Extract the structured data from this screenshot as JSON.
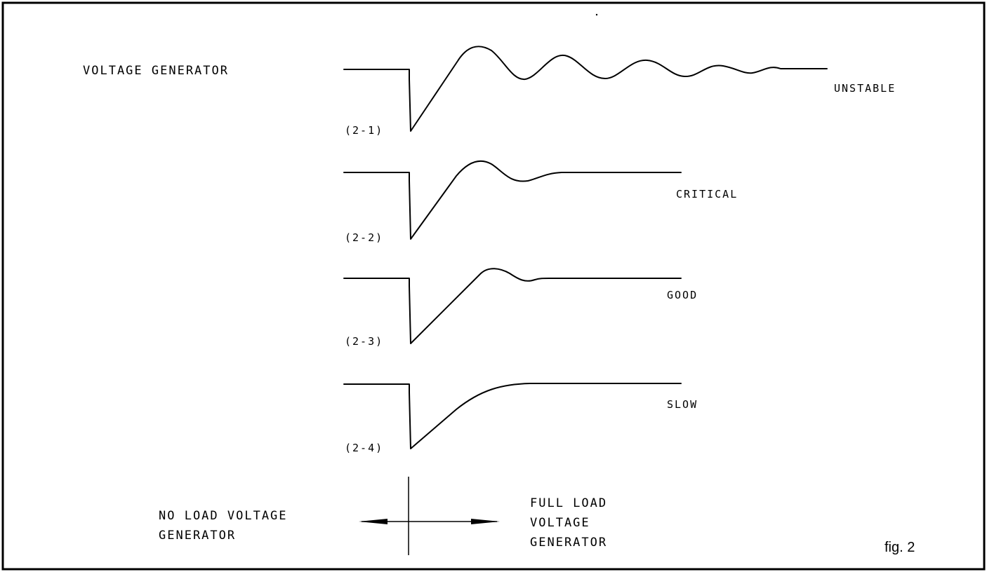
{
  "diagram": {
    "title": "VOLTAGE GENERATOR",
    "figure_label": "fig. 2",
    "traces": [
      {
        "id": "(2-1)",
        "label": "UNSTABLE"
      },
      {
        "id": "(2-2)",
        "label": "CRITICAL"
      },
      {
        "id": "(2-3)",
        "label": "GOOD"
      },
      {
        "id": "(2-4)",
        "label": "SLOW"
      }
    ],
    "bottom": {
      "left_line1": "NO LOAD VOLTAGE",
      "left_line2": "GENERATOR",
      "right_line1": "FULL LOAD",
      "right_line2": "VOLTAGE",
      "right_line3": "GENERATOR"
    }
  }
}
